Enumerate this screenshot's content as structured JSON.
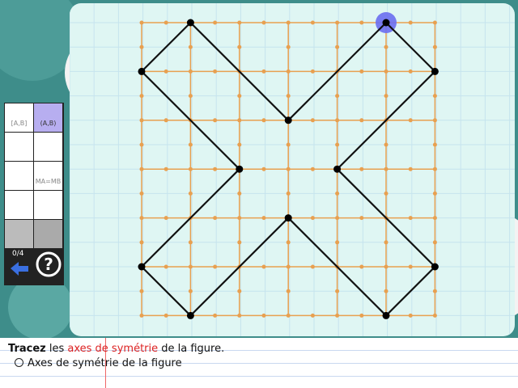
{
  "toolbar": {
    "tools": [
      "[A,B]",
      "(A,B)",
      "MA=MB"
    ],
    "score": "0/4"
  },
  "instruction": {
    "verb": "Tracez",
    "before": "les",
    "highlight": "axes de symétrie",
    "after": "de la figure."
  },
  "checklist": [
    "Axes de symétrie de la figure"
  ]
}
